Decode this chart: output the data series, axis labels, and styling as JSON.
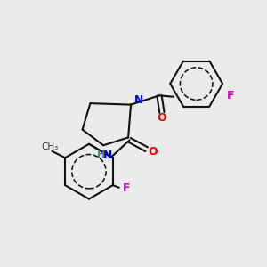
{
  "bg_color": "#ebebeb",
  "atom_colors": {
    "N": "#0000ee",
    "O": "#ee0000",
    "F": "#cc00cc",
    "H": "#448888",
    "C": "#111111"
  },
  "bond_color": "#111111",
  "bond_width": 1.5,
  "figsize": [
    3.0,
    3.0
  ],
  "dpi": 100,
  "xlim": [
    0,
    10
  ],
  "ylim": [
    0,
    10
  ]
}
